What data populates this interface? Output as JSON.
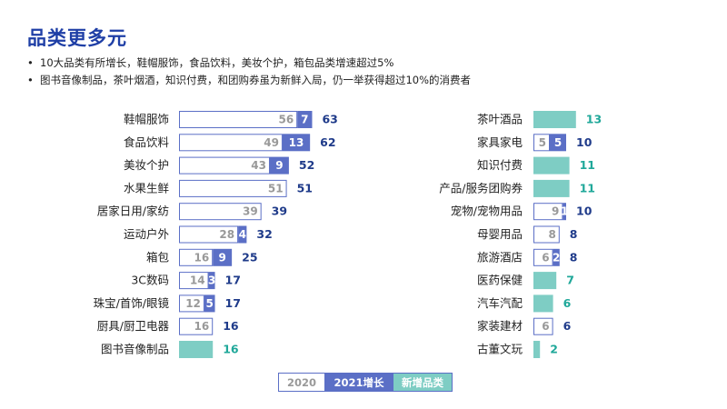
{
  "page": {
    "title": "品类更多元",
    "bullets": [
      "10大品类有所增长，鞋帽服饰，食品饮料，美妆个护，箱包品类增速超过5%",
      "图书音像制品，茶叶烟酒，知识付费，和团购券虽为新鲜入局，仍一举获得超过10%的消费者"
    ]
  },
  "colors": {
    "base": "#ffffff",
    "base_border": "#5b6fc6",
    "base_text": "#999999",
    "growth": "#5b6fc6",
    "new": "#7ecdc4",
    "total_dark": "#1f3b8a",
    "total_new": "#20a89a"
  },
  "legend": {
    "base": "2020",
    "growth": "2021增长",
    "new": "新增品类"
  },
  "chart_data": [
    {
      "type": "bar",
      "orientation": "horizontal",
      "stacked": true,
      "categories": [
        "鞋帽服饰",
        "食品饮料",
        "美妆个护",
        "水果生鲜",
        "居家日用/家纺",
        "运动户外",
        "箱包",
        "3C数码",
        "珠宝/首饰/眼镜",
        "厨具/厨卫电器",
        "图书音像制品"
      ],
      "series": [
        {
          "name": "2020",
          "values": [
            56,
            49,
            43,
            51,
            39,
            28,
            16,
            14,
            12,
            16,
            0
          ]
        },
        {
          "name": "2021增长",
          "values": [
            7,
            13,
            9,
            0,
            0,
            4,
            9,
            3,
            5,
            0,
            0
          ]
        },
        {
          "name": "新增品类",
          "values": [
            0,
            0,
            0,
            0,
            0,
            0,
            0,
            0,
            0,
            0,
            16
          ]
        }
      ],
      "totals": [
        63,
        62,
        52,
        51,
        39,
        32,
        25,
        17,
        17,
        16,
        16
      ],
      "legend": "bottom"
    },
    {
      "type": "bar",
      "orientation": "horizontal",
      "stacked": true,
      "categories": [
        "茶叶酒品",
        "家具家电",
        "知识付费",
        "产品/服务团购券",
        "宠物/宠物用品",
        "母婴用品",
        "旅游酒店",
        "医药保健",
        "汽车汽配",
        "家装建材",
        "古董文玩"
      ],
      "series": [
        {
          "name": "2020",
          "values": [
            0,
            5,
            0,
            0,
            9,
            8,
            6,
            0,
            0,
            6,
            0
          ]
        },
        {
          "name": "2021增长",
          "values": [
            0,
            5,
            0,
            0,
            1,
            0,
            2,
            0,
            0,
            0,
            0
          ]
        },
        {
          "name": "新增品类",
          "values": [
            13,
            0,
            11,
            11,
            0,
            0,
            0,
            7,
            6,
            0,
            2
          ]
        }
      ],
      "totals": [
        13,
        10,
        11,
        11,
        10,
        8,
        8,
        7,
        6,
        6,
        2
      ],
      "legend": "bottom"
    }
  ]
}
